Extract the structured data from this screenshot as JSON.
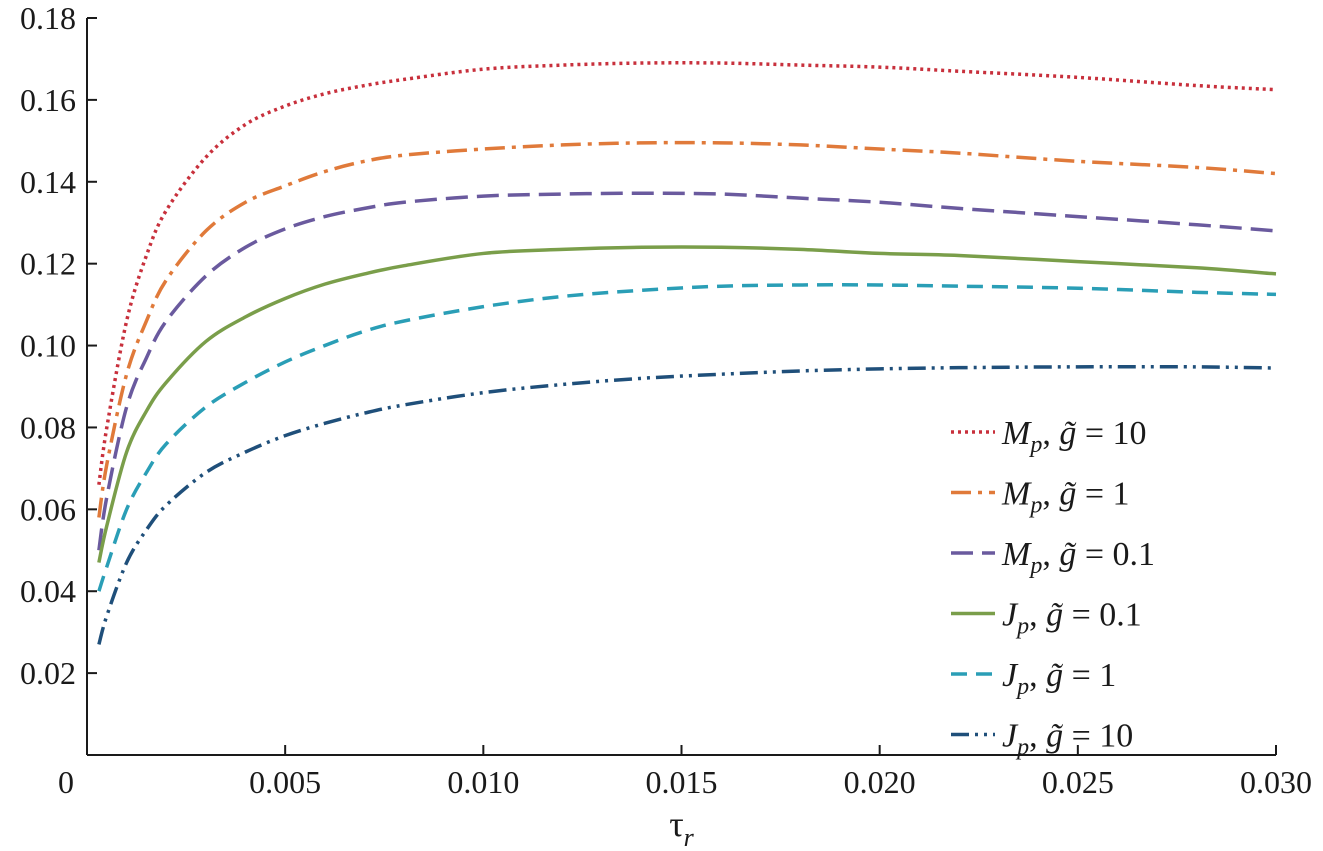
{
  "chart_data": {
    "type": "line",
    "xlabel": "τ",
    "xlabel_sub": "r",
    "ylabel": "",
    "xlim": [
      0,
      0.03
    ],
    "ylim": [
      0,
      0.18
    ],
    "x_ticks": [
      {
        "value": 0,
        "label": "0"
      },
      {
        "value": 0.005,
        "label": "0.005"
      },
      {
        "value": 0.01,
        "label": "0.010"
      },
      {
        "value": 0.015,
        "label": "0.015"
      },
      {
        "value": 0.02,
        "label": "0.020"
      },
      {
        "value": 0.025,
        "label": "0.025"
      },
      {
        "value": 0.03,
        "label": "0.030"
      }
    ],
    "y_ticks": [
      {
        "value": 0.02,
        "label": "0.02"
      },
      {
        "value": 0.04,
        "label": "0.04"
      },
      {
        "value": 0.06,
        "label": "0.06"
      },
      {
        "value": 0.08,
        "label": "0.08"
      },
      {
        "value": 0.1,
        "label": "0.10"
      },
      {
        "value": 0.12,
        "label": "0.12"
      },
      {
        "value": 0.14,
        "label": "0.14"
      },
      {
        "value": 0.16,
        "label": "0.16"
      },
      {
        "value": 0.18,
        "label": "0.18"
      }
    ],
    "grid": false,
    "legend_position": "bottom-right",
    "series": [
      {
        "sym": "M",
        "sub": "p",
        "gval": "10",
        "color": "#c8303c",
        "dash": "3,4",
        "x": [
          0.0003,
          0.0005,
          0.001,
          0.0015,
          0.002,
          0.003,
          0.004,
          0.005,
          0.006,
          0.007,
          0.008,
          0.01,
          0.012,
          0.014,
          0.016,
          0.018,
          0.02,
          0.022,
          0.025,
          0.028,
          0.03
        ],
        "y": [
          0.066,
          0.08,
          0.106,
          0.122,
          0.133,
          0.146,
          0.154,
          0.1585,
          0.1615,
          0.1635,
          0.165,
          0.1675,
          0.1685,
          0.169,
          0.169,
          0.1685,
          0.168,
          0.167,
          0.1655,
          0.1635,
          0.1625
        ]
      },
      {
        "sym": "M",
        "sub": "p",
        "gval": "1",
        "color": "#e07a3a",
        "dash": "20,7,4,7",
        "x": [
          0.0003,
          0.0005,
          0.001,
          0.0015,
          0.002,
          0.003,
          0.004,
          0.005,
          0.006,
          0.007,
          0.008,
          0.01,
          0.012,
          0.014,
          0.016,
          0.018,
          0.02,
          0.022,
          0.025,
          0.028,
          0.03
        ],
        "y": [
          0.058,
          0.071,
          0.093,
          0.106,
          0.116,
          0.128,
          0.135,
          0.139,
          0.1425,
          0.145,
          0.1465,
          0.148,
          0.149,
          0.1495,
          0.1495,
          0.149,
          0.148,
          0.147,
          0.145,
          0.1435,
          0.142
        ]
      },
      {
        "sym": "M",
        "sub": "p",
        "gval": "0.1",
        "color": "#6a5a9e",
        "dash": "22,9",
        "x": [
          0.0003,
          0.0005,
          0.001,
          0.0015,
          0.002,
          0.003,
          0.004,
          0.005,
          0.006,
          0.007,
          0.008,
          0.01,
          0.012,
          0.014,
          0.016,
          0.018,
          0.02,
          0.022,
          0.025,
          0.028,
          0.03
        ],
        "y": [
          0.05,
          0.063,
          0.085,
          0.097,
          0.106,
          0.117,
          0.124,
          0.1285,
          0.1315,
          0.1335,
          0.135,
          0.1365,
          0.137,
          0.1372,
          0.137,
          0.136,
          0.135,
          0.1335,
          0.1315,
          0.1295,
          0.128
        ]
      },
      {
        "sym": "J",
        "sub": "p",
        "gval": "0.1",
        "color": "#7a9e4a",
        "dash": "",
        "x": [
          0.0003,
          0.0005,
          0.001,
          0.0015,
          0.002,
          0.003,
          0.004,
          0.005,
          0.006,
          0.007,
          0.008,
          0.01,
          0.012,
          0.014,
          0.016,
          0.018,
          0.02,
          0.022,
          0.025,
          0.028,
          0.03
        ],
        "y": [
          0.047,
          0.056,
          0.074,
          0.084,
          0.091,
          0.101,
          0.107,
          0.1115,
          0.115,
          0.1175,
          0.1195,
          0.1225,
          0.1235,
          0.124,
          0.124,
          0.1235,
          0.1225,
          0.122,
          0.1205,
          0.119,
          0.1175
        ]
      },
      {
        "sym": "J",
        "sub": "p",
        "gval": "1",
        "color": "#2a9eb6",
        "dash": "16,9",
        "x": [
          0.0003,
          0.0005,
          0.001,
          0.0015,
          0.002,
          0.003,
          0.004,
          0.005,
          0.006,
          0.007,
          0.008,
          0.01,
          0.012,
          0.014,
          0.016,
          0.018,
          0.02,
          0.022,
          0.025,
          0.028,
          0.03
        ],
        "y": [
          0.04,
          0.046,
          0.06,
          0.069,
          0.076,
          0.085,
          0.091,
          0.096,
          0.1,
          0.1035,
          0.106,
          0.1095,
          0.112,
          0.1135,
          0.1145,
          0.1148,
          0.1148,
          0.1145,
          0.114,
          0.113,
          0.1125
        ]
      },
      {
        "sym": "J",
        "sub": "p",
        "gval": "10",
        "color": "#1f4f7a",
        "dash": "18,6,3,6,3,6",
        "x": [
          0.0003,
          0.0005,
          0.001,
          0.0015,
          0.002,
          0.003,
          0.004,
          0.005,
          0.006,
          0.007,
          0.008,
          0.01,
          0.012,
          0.014,
          0.016,
          0.018,
          0.02,
          0.022,
          0.025,
          0.028,
          0.03
        ],
        "y": [
          0.027,
          0.034,
          0.047,
          0.055,
          0.061,
          0.069,
          0.074,
          0.078,
          0.081,
          0.0835,
          0.0855,
          0.0885,
          0.0905,
          0.092,
          0.093,
          0.0938,
          0.0943,
          0.0946,
          0.0948,
          0.0948,
          0.0945
        ]
      }
    ]
  }
}
